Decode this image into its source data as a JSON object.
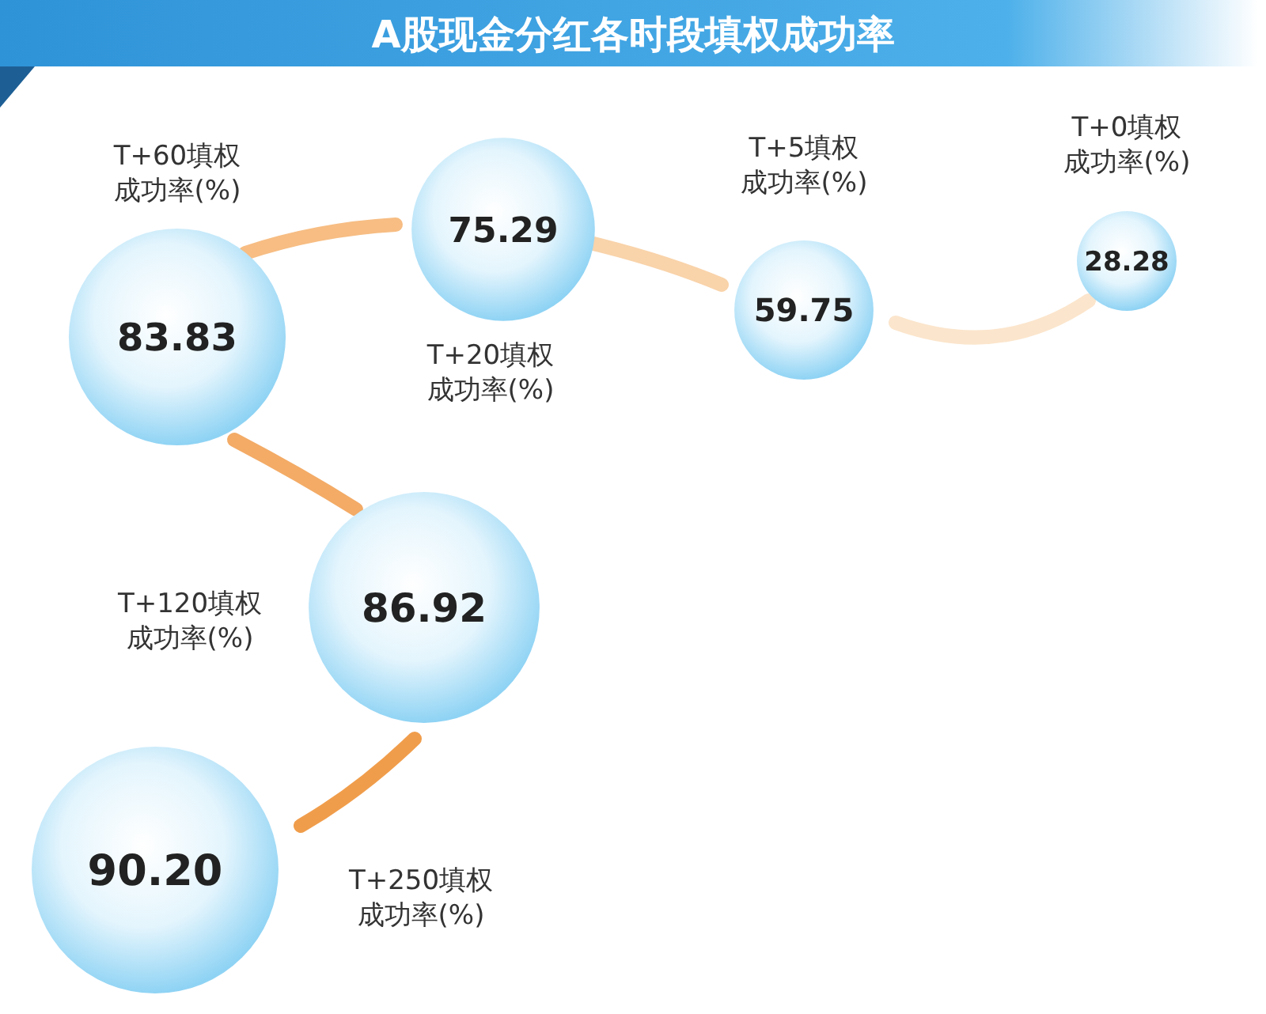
{
  "chart_data": {
    "type": "other",
    "title": "A股现金分红各时段填权成功率",
    "categories": [
      "T+0填权成功率(%)",
      "T+5填权成功率(%)",
      "T+20填权成功率(%)",
      "T+60填权成功率(%)",
      "T+120填权成功率(%)",
      "T+250填权成功率(%)"
    ],
    "values": [
      28.28,
      59.75,
      75.29,
      83.83,
      86.92,
      90.2
    ],
    "value_labels": [
      "28.28",
      "59.75",
      "75.29",
      "83.83",
      "86.92",
      "90.20"
    ],
    "color": "#8fd3f4"
  }
}
